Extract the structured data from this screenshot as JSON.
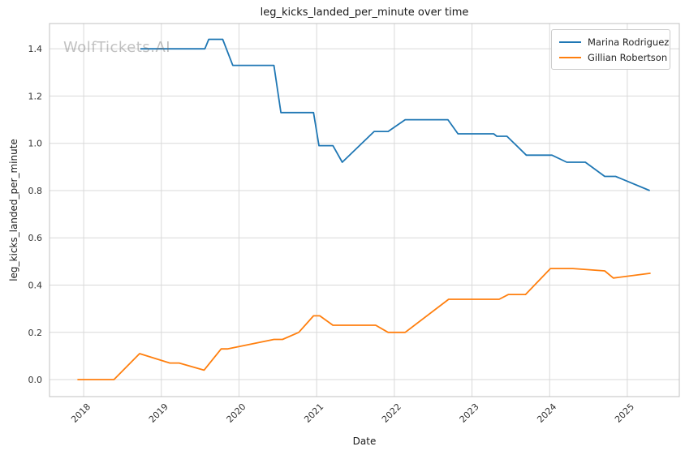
{
  "title": "leg_kicks_landed_per_minute over time",
  "watermark": "WolfTickets.AI",
  "colors": {
    "series_blue": "#1f77b4",
    "series_orange": "#ff7f0e",
    "grid": "#d9d9d9",
    "spine": "#c0c0c0",
    "tick_text": "#333333",
    "watermark_text": "#9b9b9b"
  },
  "chart_data": {
    "type": "line",
    "title": "leg_kicks_landed_per_minute over time",
    "xlabel": "Date",
    "ylabel": "leg_kicks_landed_per_minute",
    "xlim": [
      2017.56,
      2025.67
    ],
    "ylim": [
      -0.072,
      1.507
    ],
    "xticks": [
      2018,
      2019,
      2020,
      2021,
      2022,
      2023,
      2024,
      2025
    ],
    "yticks": [
      0.0,
      0.2,
      0.4,
      0.6,
      0.8,
      1.0,
      1.2,
      1.4
    ],
    "grid": true,
    "legend_position": "upper right",
    "series": [
      {
        "name": "Marina Rodriguez",
        "color": "#1f77b4",
        "points": [
          [
            2018.73,
            1.4
          ],
          [
            2019.56,
            1.4
          ],
          [
            2019.61,
            1.44
          ],
          [
            2019.79,
            1.44
          ],
          [
            2019.92,
            1.33
          ],
          [
            2020.45,
            1.33
          ],
          [
            2020.54,
            1.13
          ],
          [
            2020.96,
            1.13
          ],
          [
            2021.03,
            0.99
          ],
          [
            2021.21,
            0.99
          ],
          [
            2021.33,
            0.92
          ],
          [
            2021.74,
            1.05
          ],
          [
            2021.92,
            1.05
          ],
          [
            2022.14,
            1.1
          ],
          [
            2022.69,
            1.1
          ],
          [
            2022.82,
            1.04
          ],
          [
            2023.28,
            1.04
          ],
          [
            2023.32,
            1.03
          ],
          [
            2023.45,
            1.03
          ],
          [
            2023.7,
            0.95
          ],
          [
            2024.03,
            0.95
          ],
          [
            2024.22,
            0.92
          ],
          [
            2024.46,
            0.92
          ],
          [
            2024.71,
            0.86
          ],
          [
            2024.85,
            0.86
          ],
          [
            2025.29,
            0.8
          ]
        ]
      },
      {
        "name": "Gillian Robertson",
        "color": "#ff7f0e",
        "points": [
          [
            2017.92,
            0.0
          ],
          [
            2018.39,
            0.0
          ],
          [
            2018.72,
            0.11
          ],
          [
            2019.11,
            0.07
          ],
          [
            2019.23,
            0.07
          ],
          [
            2019.55,
            0.04
          ],
          [
            2019.77,
            0.13
          ],
          [
            2019.85,
            0.13
          ],
          [
            2020.45,
            0.17
          ],
          [
            2020.56,
            0.17
          ],
          [
            2020.77,
            0.2
          ],
          [
            2020.96,
            0.27
          ],
          [
            2021.04,
            0.27
          ],
          [
            2021.21,
            0.23
          ],
          [
            2021.76,
            0.23
          ],
          [
            2021.92,
            0.2
          ],
          [
            2022.14,
            0.2
          ],
          [
            2022.7,
            0.34
          ],
          [
            2023.35,
            0.34
          ],
          [
            2023.47,
            0.36
          ],
          [
            2023.69,
            0.36
          ],
          [
            2024.01,
            0.47
          ],
          [
            2024.3,
            0.47
          ],
          [
            2024.71,
            0.46
          ],
          [
            2024.82,
            0.43
          ],
          [
            2025.3,
            0.45
          ]
        ]
      }
    ]
  }
}
